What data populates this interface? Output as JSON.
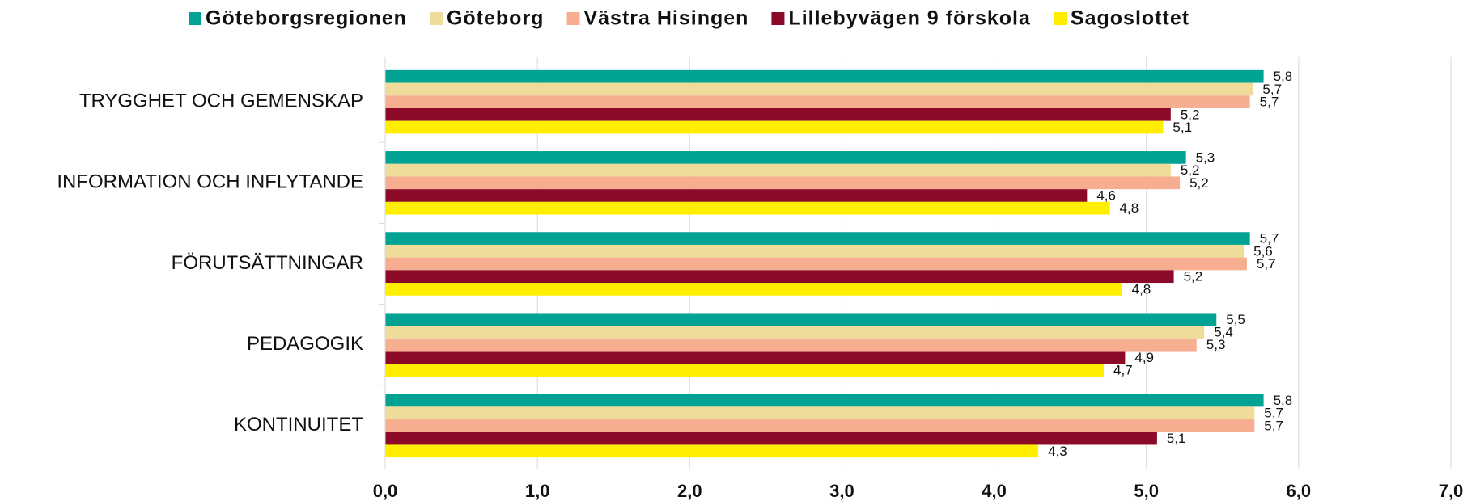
{
  "chart_data": {
    "type": "hbar",
    "categories": [
      "TRYGGHET OCH GEMENSKAP",
      "INFORMATION OCH INFLYTANDE",
      "FÖRUTSÄTTNINGAR",
      "PEDAGOGIK",
      "KONTINUITET"
    ],
    "series": [
      {
        "name": "Göteborgsregionen",
        "color": "#00a294",
        "values": [
          5.77,
          5.26,
          5.68,
          5.46,
          5.77
        ],
        "value_labels": [
          "5,8",
          "5,3",
          "5,7",
          "5,5",
          "5,8"
        ]
      },
      {
        "name": "Göteborg",
        "color": "#f0dc9a",
        "values": [
          5.7,
          5.16,
          5.64,
          5.38,
          5.71
        ],
        "value_labels": [
          "5,7",
          "5,2",
          "5,6",
          "5,4",
          "5,7"
        ]
      },
      {
        "name": "Västra Hisingen",
        "color": "#f7ae90",
        "values": [
          5.68,
          5.22,
          5.66,
          5.33,
          5.71
        ],
        "value_labels": [
          "5,7",
          "5,2",
          "5,7",
          "5,3",
          "5,7"
        ]
      },
      {
        "name": "Lillebyvägen 9 förskola",
        "color": "#8b0a28",
        "values": [
          5.16,
          4.61,
          5.18,
          4.86,
          5.07
        ],
        "value_labels": [
          "5,2",
          "4,6",
          "5,2",
          "4,9",
          "5,1"
        ]
      },
      {
        "name": "Sagoslottet",
        "color": "#ffee00",
        "values": [
          5.11,
          4.76,
          4.84,
          4.72,
          4.29
        ],
        "value_labels": [
          "5,1",
          "4,8",
          "4,8",
          "4,7",
          "4,3"
        ]
      }
    ],
    "xlim": [
      0,
      7
    ],
    "xticks": [
      {
        "value": 0,
        "label": "0,0"
      },
      {
        "value": 1,
        "label": "1,0"
      },
      {
        "value": 2,
        "label": "2,0"
      },
      {
        "value": 3,
        "label": "3,0"
      },
      {
        "value": 4,
        "label": "4,0"
      },
      {
        "value": 5,
        "label": "5,0"
      },
      {
        "value": 6,
        "label": "6,0"
      },
      {
        "value": 7,
        "label": "7,0"
      }
    ],
    "grid": true,
    "legend": "top"
  }
}
